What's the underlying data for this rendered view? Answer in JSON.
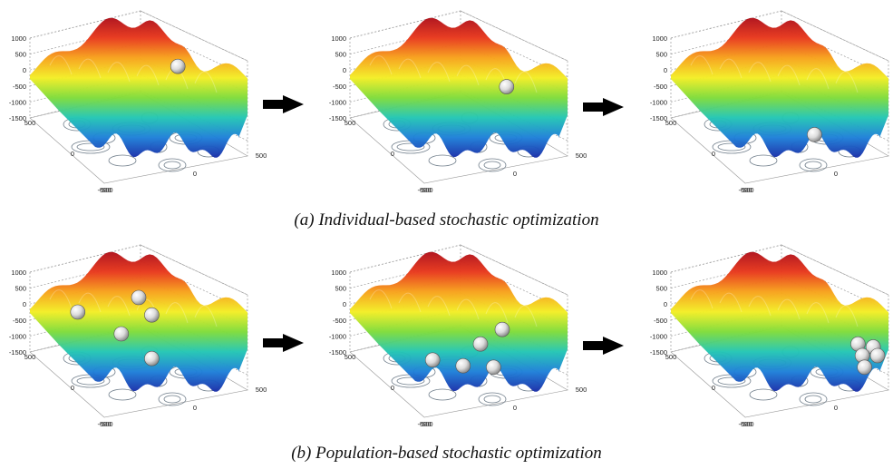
{
  "figure": {
    "captions": {
      "a": "(a) Individual-based stochastic optimization",
      "b": "(b) Population-based stochastic optimization"
    },
    "axis": {
      "z_ticks": [
        "1000",
        "500",
        "0",
        "-500",
        "-1000",
        "-1500"
      ],
      "x_ticks": [
        "-500",
        "0",
        "500"
      ],
      "y_ticks": [
        "500",
        "0",
        "-500"
      ]
    },
    "colors": {
      "surface_gradient": [
        "#b0101a",
        "#e8381c",
        "#f7a21b",
        "#f3ee25",
        "#7fdc3a",
        "#23c6b4",
        "#1e7fd8",
        "#1a2ea8"
      ],
      "ball": "#e4e4e4",
      "arrow": "#000000",
      "contour": "#6f7d8a",
      "grid": "#9a9a9a"
    },
    "rows": [
      {
        "id": "individual",
        "panels": [
          {
            "balls": [
              {
                "u": 0.68,
                "v": 0.32
              }
            ]
          },
          {
            "balls": [
              {
                "u": 0.72,
                "v": 0.46
              }
            ]
          },
          {
            "balls": [
              {
                "u": 0.66,
                "v": 0.79
              }
            ]
          }
        ]
      },
      {
        "id": "population",
        "panels": [
          {
            "balls": [
              {
                "u": 0.5,
                "v": 0.3
              },
              {
                "u": 0.22,
                "v": 0.4
              },
              {
                "u": 0.56,
                "v": 0.42
              },
              {
                "u": 0.42,
                "v": 0.55
              },
              {
                "u": 0.56,
                "v": 0.72
              }
            ]
          },
          {
            "balls": [
              {
                "u": 0.7,
                "v": 0.52
              },
              {
                "u": 0.6,
                "v": 0.62
              },
              {
                "u": 0.38,
                "v": 0.73
              },
              {
                "u": 0.52,
                "v": 0.77
              },
              {
                "u": 0.66,
                "v": 0.78
              }
            ]
          },
          {
            "balls": [
              {
                "u": 0.86,
                "v": 0.62
              },
              {
                "u": 0.93,
                "v": 0.64
              },
              {
                "u": 0.88,
                "v": 0.7
              },
              {
                "u": 0.95,
                "v": 0.7
              },
              {
                "u": 0.89,
                "v": 0.78
              }
            ]
          }
        ]
      }
    ]
  }
}
